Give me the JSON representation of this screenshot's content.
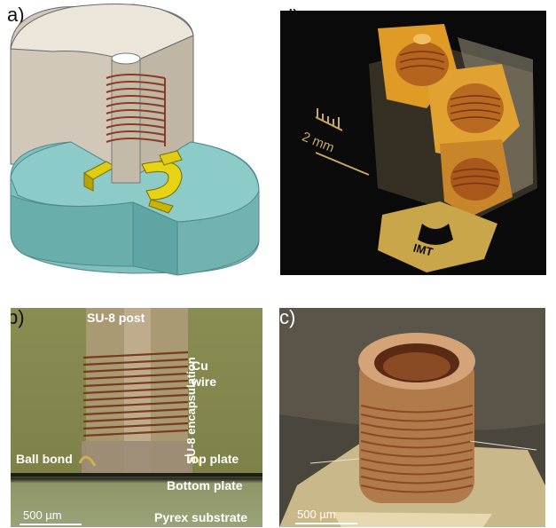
{
  "panels": {
    "a": {
      "label": "a)"
    },
    "b": {
      "label": "b)",
      "annotations": {
        "post": "SU-8 post",
        "wire": "Cu\nwire",
        "encapsulation": "SU-8 encapsulation",
        "ball_bond": "Ball bond",
        "top_plate": "Top plate",
        "bottom_plate": "Bottom plate",
        "substrate": "Pyrex substrate"
      },
      "scale": "500 µm"
    },
    "c": {
      "label": "c)",
      "scale": "500 µm"
    },
    "d": {
      "label": "d)",
      "ruler": "2 mm",
      "logo": "IMT"
    }
  },
  "colors": {
    "cylinder_top": "#ded6c8",
    "teal": "#6fb5b5",
    "gold": "#d9c400",
    "copper": "#8a3b24",
    "panel_d_bg": "#0b0b0b"
  }
}
